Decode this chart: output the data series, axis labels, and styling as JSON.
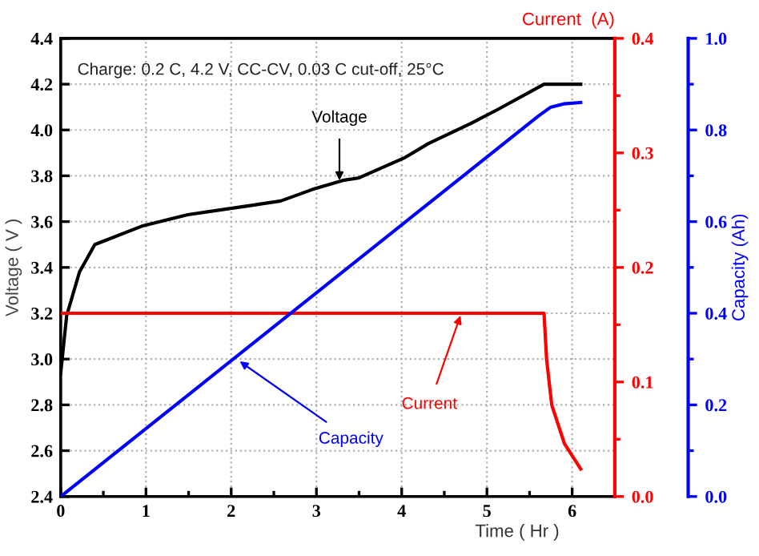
{
  "chart_data": {
    "type": "line",
    "xlabel": "Time ( Hr )",
    "ylabel": "Voltage ( V )",
    "y2label": "Current  (A)",
    "y3label": "Capacity (Ah)",
    "xlim": [
      0,
      6.5
    ],
    "xticks": [
      0,
      1,
      2,
      3,
      4,
      5,
      6,
      {
        "value": 0.5,
        "label": null
      },
      {
        "value": 1.5,
        "label": null
      },
      {
        "value": 2.5,
        "label": null
      },
      {
        "value": 3.5,
        "label": null
      },
      {
        "value": 4.5,
        "label": null
      },
      {
        "value": 5.5,
        "label": null
      },
      {
        "value": 6.5,
        "label": null
      }
    ],
    "ylim": [
      2.4,
      4.4
    ],
    "yticks": [
      {
        "value": 2.4,
        "label": "2.4"
      },
      {
        "value": 2.6,
        "label": "2.6"
      },
      {
        "value": 2.8,
        "label": "2.8"
      },
      {
        "value": 3.0,
        "label": "3.0"
      },
      {
        "value": 3.2,
        "label": "3.2"
      },
      {
        "value": 3.4,
        "label": "3.4"
      },
      {
        "value": 3.6,
        "label": "3.6"
      },
      {
        "value": 3.8,
        "label": "3.8"
      },
      {
        "value": 4.0,
        "label": "4.0"
      },
      {
        "value": 4.2,
        "label": "4.2"
      },
      {
        "value": 4.4,
        "label": "4.4"
      }
    ],
    "y2lim": [
      0,
      0.4
    ],
    "y2ticks": [
      {
        "value": 0,
        "label": "0.0"
      },
      {
        "value": 0.05,
        "label": null
      },
      0.1,
      {
        "value": 0.15,
        "label": null
      },
      0.2,
      {
        "value": 0.25,
        "label": null
      },
      0.3,
      {
        "value": 0.35,
        "label": null
      },
      0.4
    ],
    "y3lim": [
      0,
      1.0
    ],
    "y3ticks": [
      {
        "value": 0,
        "label": "0.0"
      },
      {
        "value": 0.1,
        "label": null
      },
      0.2,
      {
        "value": 0.3,
        "label": null
      },
      0.4,
      {
        "value": 0.5,
        "label": null
      },
      0.6,
      {
        "value": 0.7,
        "label": null
      },
      0.8,
      {
        "value": 0.9,
        "label": null
      },
      {
        "value": 1.0,
        "label": "1.0"
      }
    ],
    "grid": true,
    "legend": false,
    "marker": "none",
    "line_style": "solid",
    "series": [
      {
        "color": "#000000",
        "x": [
          0,
          0.07,
          0.22,
          0.4,
          0.95,
          1.49,
          2.22,
          2.58,
          2.95,
          3.31,
          3.49,
          4.04,
          4.31,
          4.82,
          5.13,
          5.67,
          6.1
        ],
        "values": [
          2.94,
          3.19,
          3.38,
          3.5,
          3.58,
          3.63,
          3.67,
          3.69,
          3.74,
          3.78,
          3.79,
          3.88,
          3.94,
          4.03,
          4.09,
          4.2,
          4.2
        ]
      },
      {
        "color": "#ff0000",
        "axis": "y2",
        "x": [
          0,
          5.67,
          5.7,
          5.76,
          5.91,
          6.1
        ],
        "values": [
          0.16,
          0.16,
          0.12,
          0.08,
          0.046,
          0.024
        ]
      },
      {
        "color": "#0000ff",
        "axis": "y3",
        "x": [
          0,
          5.6,
          5.75,
          5.9,
          6.1
        ],
        "values": [
          0,
          0.83,
          0.85,
          0.857,
          0.86
        ]
      }
    ],
    "annotations": [
      {
        "text": "Charge: 0.2 C, 4.2 V, CC-CV, 0.03 C cut-off, 25°C"
      },
      {
        "text": "Voltage",
        "x": 3.27,
        "y": 3.78
      },
      {
        "text": "Current",
        "x": 4.69,
        "y": 3.19
      },
      {
        "text": "Capacity",
        "x": 2.1,
        "y": 2.99
      }
    ]
  }
}
